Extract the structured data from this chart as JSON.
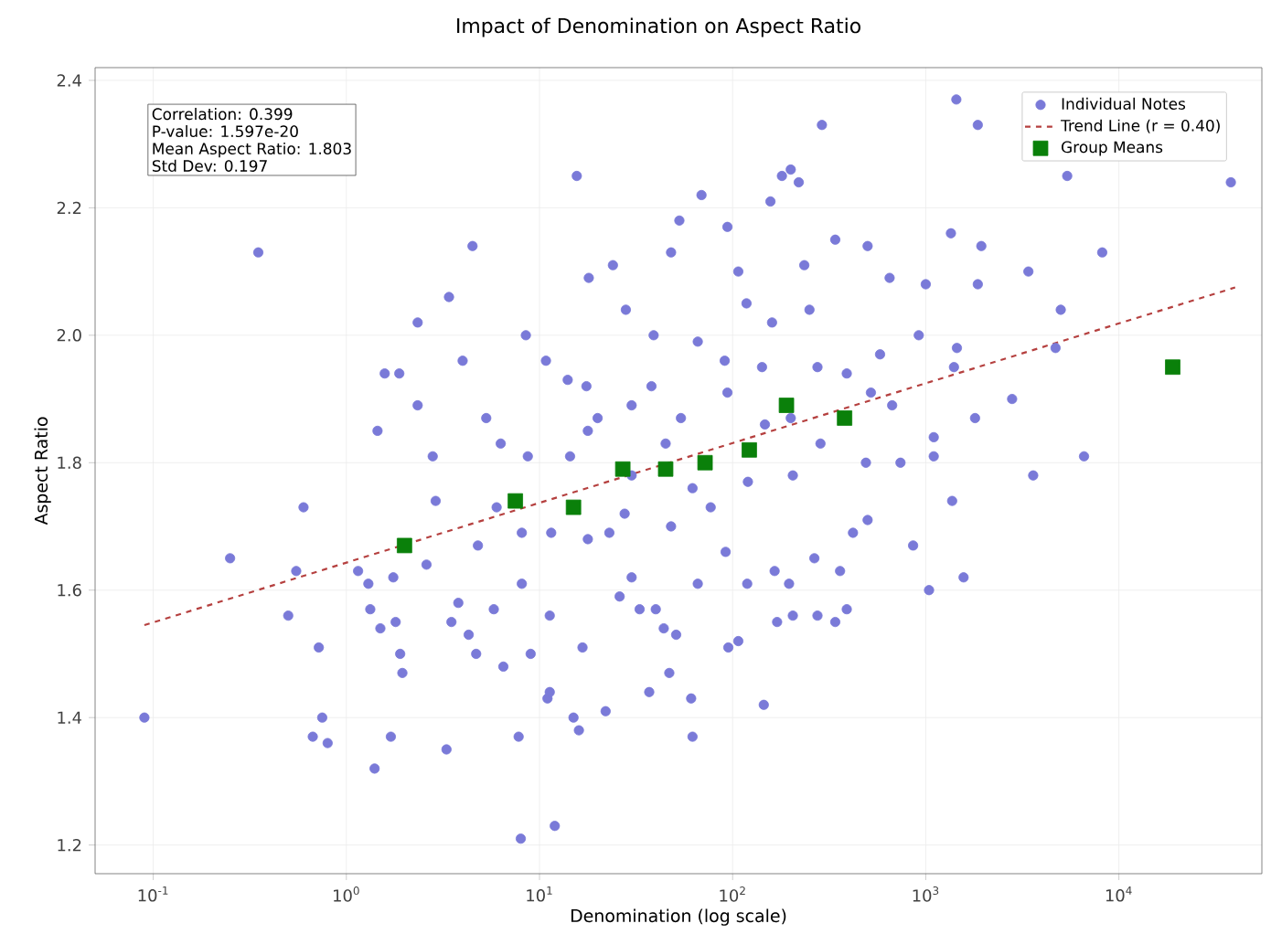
{
  "chart_data": {
    "type": "scatter",
    "title": "Impact of Denomination on Aspect Ratio",
    "xlabel": "Denomination (log scale)",
    "ylabel": "Aspect Ratio",
    "annotations": [
      "Correlation: 0.399",
      "P-value: 1.597e-20",
      "Mean Aspect Ratio: 1.803",
      "Std Dev: 0.197"
    ],
    "log": "x",
    "grid": true,
    "legend": "top right",
    "xlim": [
      0.05,
      55000
    ],
    "ylim": [
      1.155,
      2.42
    ],
    "xticks": [
      {
        "value": 0.1,
        "label": "10$^{-1}$"
      },
      {
        "value": 1,
        "label": "10$^{0}$"
      },
      {
        "value": 10,
        "label": "10$^{1}$"
      },
      {
        "value": 100,
        "label": "10$^{2}$"
      },
      {
        "value": 1000,
        "label": "10$^{3}$"
      },
      {
        "value": 10000,
        "label": "10$^{4}$"
      }
    ],
    "yticks": [
      1.2,
      1.4,
      1.6,
      1.8,
      {
        "value": 2.0,
        "label": "2.0"
      },
      2.2,
      2.4
    ],
    "series": [
      {
        "name": "Individual Notes",
        "type": "scatter",
        "marker": "circle",
        "color": "#7a7ad8",
        "x": [
          0.09,
          0.25,
          0.35,
          0.5,
          0.55,
          0.6,
          0.67,
          0.72,
          0.75,
          0.8,
          1.15,
          1.3,
          1.33,
          1.4,
          1.45,
          1.5,
          1.58,
          1.7,
          1.75,
          1.8,
          1.88,
          1.9,
          1.95,
          2.34,
          2.34,
          2.6,
          2.8,
          2.9,
          3.3,
          3.4,
          3.5,
          3.8,
          4,
          4.3,
          4.5,
          4.7,
          4.8,
          5.3,
          5.8,
          6,
          6.3,
          6.5,
          7.8,
          8,
          8.1,
          8.1,
          8.5,
          8.7,
          9,
          10.8,
          11,
          11.3,
          11.3,
          11.5,
          12,
          14,
          14.4,
          15.6,
          15,
          16,
          16.7,
          17.5,
          17.8,
          17.8,
          18,
          20,
          22,
          23,
          24,
          26,
          27.6,
          28,
          30,
          30,
          30,
          33,
          37,
          38,
          39,
          40,
          44,
          45,
          47,
          48,
          48,
          51,
          53,
          54,
          61,
          62,
          62,
          66,
          66,
          69,
          77,
          91,
          92,
          94,
          94,
          95,
          107,
          107,
          118,
          119,
          120,
          142,
          145,
          147,
          157,
          160,
          165,
          170,
          180,
          196,
          200,
          200,
          205,
          205,
          220,
          235,
          250,
          265,
          275,
          275,
          285,
          290,
          340,
          340,
          360,
          390,
          390,
          420,
          490,
          500,
          500,
          520,
          580,
          650,
          670,
          740,
          860,
          920,
          1000,
          1040,
          1100,
          1100,
          1350,
          1370,
          1400,
          1440,
          1450,
          1570,
          1800,
          1860,
          1860,
          1940,
          2800,
          3400,
          3600,
          4700,
          5000,
          5400,
          6600,
          8200,
          38000
        ],
        "values": [
          1.4,
          1.65,
          2.13,
          1.56,
          1.63,
          1.73,
          1.37,
          1.51,
          1.4,
          1.36,
          1.63,
          1.61,
          1.57,
          1.32,
          1.85,
          1.54,
          1.94,
          1.37,
          1.62,
          1.55,
          1.94,
          1.5,
          1.47,
          2.02,
          1.89,
          1.64,
          1.81,
          1.74,
          1.35,
          2.06,
          1.55,
          1.58,
          1.96,
          1.53,
          2.14,
          1.5,
          1.67,
          1.87,
          1.57,
          1.73,
          1.83,
          1.48,
          1.37,
          1.21,
          1.61,
          1.69,
          2.0,
          1.81,
          1.5,
          1.96,
          1.43,
          1.56,
          1.44,
          1.69,
          1.23,
          1.93,
          1.81,
          2.25,
          1.4,
          1.38,
          1.51,
          1.92,
          1.85,
          1.68,
          2.09,
          1.87,
          1.41,
          1.69,
          2.11,
          1.59,
          1.72,
          2.04,
          1.89,
          1.78,
          1.62,
          1.57,
          1.44,
          1.92,
          2.0,
          1.57,
          1.54,
          1.83,
          1.47,
          2.13,
          1.7,
          1.53,
          2.18,
          1.87,
          1.43,
          1.76,
          1.37,
          1.99,
          1.61,
          2.22,
          1.73,
          1.96,
          1.66,
          2.17,
          1.91,
          1.51,
          2.1,
          1.52,
          2.05,
          1.61,
          1.77,
          1.95,
          1.42,
          1.86,
          2.21,
          2.02,
          1.63,
          1.55,
          2.25,
          1.61,
          2.26,
          1.87,
          1.78,
          1.56,
          2.24,
          2.11,
          2.04,
          1.65,
          1.95,
          1.56,
          1.83,
          2.33,
          2.15,
          1.55,
          1.63,
          1.94,
          1.57,
          1.69,
          1.8,
          2.14,
          1.71,
          1.91,
          1.97,
          2.09,
          1.89,
          1.8,
          1.67,
          2.0,
          2.08,
          1.6,
          1.84,
          1.81,
          2.16,
          1.74,
          1.95,
          2.37,
          1.98,
          1.62,
          1.87,
          2.33,
          2.08,
          2.14,
          1.9,
          2.1,
          1.78,
          1.98,
          2.04,
          2.25,
          1.81,
          2.13,
          2.24
        ]
      },
      {
        "name": "Trend Line (r = 0.40)",
        "type": "line",
        "line_style": "dashed",
        "color": "#b5403f",
        "x": [
          0.09,
          40000
        ],
        "values": [
          1.545,
          2.075
        ]
      },
      {
        "name": "Group Means",
        "type": "scatter",
        "marker": "square",
        "color": "#0a800a",
        "x": [
          2,
          7.5,
          15,
          27,
          45,
          72,
          122,
          190,
          380,
          19000
        ],
        "values": [
          1.67,
          1.74,
          1.73,
          1.79,
          1.79,
          1.8,
          1.82,
          1.89,
          1.87,
          1.95
        ]
      }
    ]
  }
}
